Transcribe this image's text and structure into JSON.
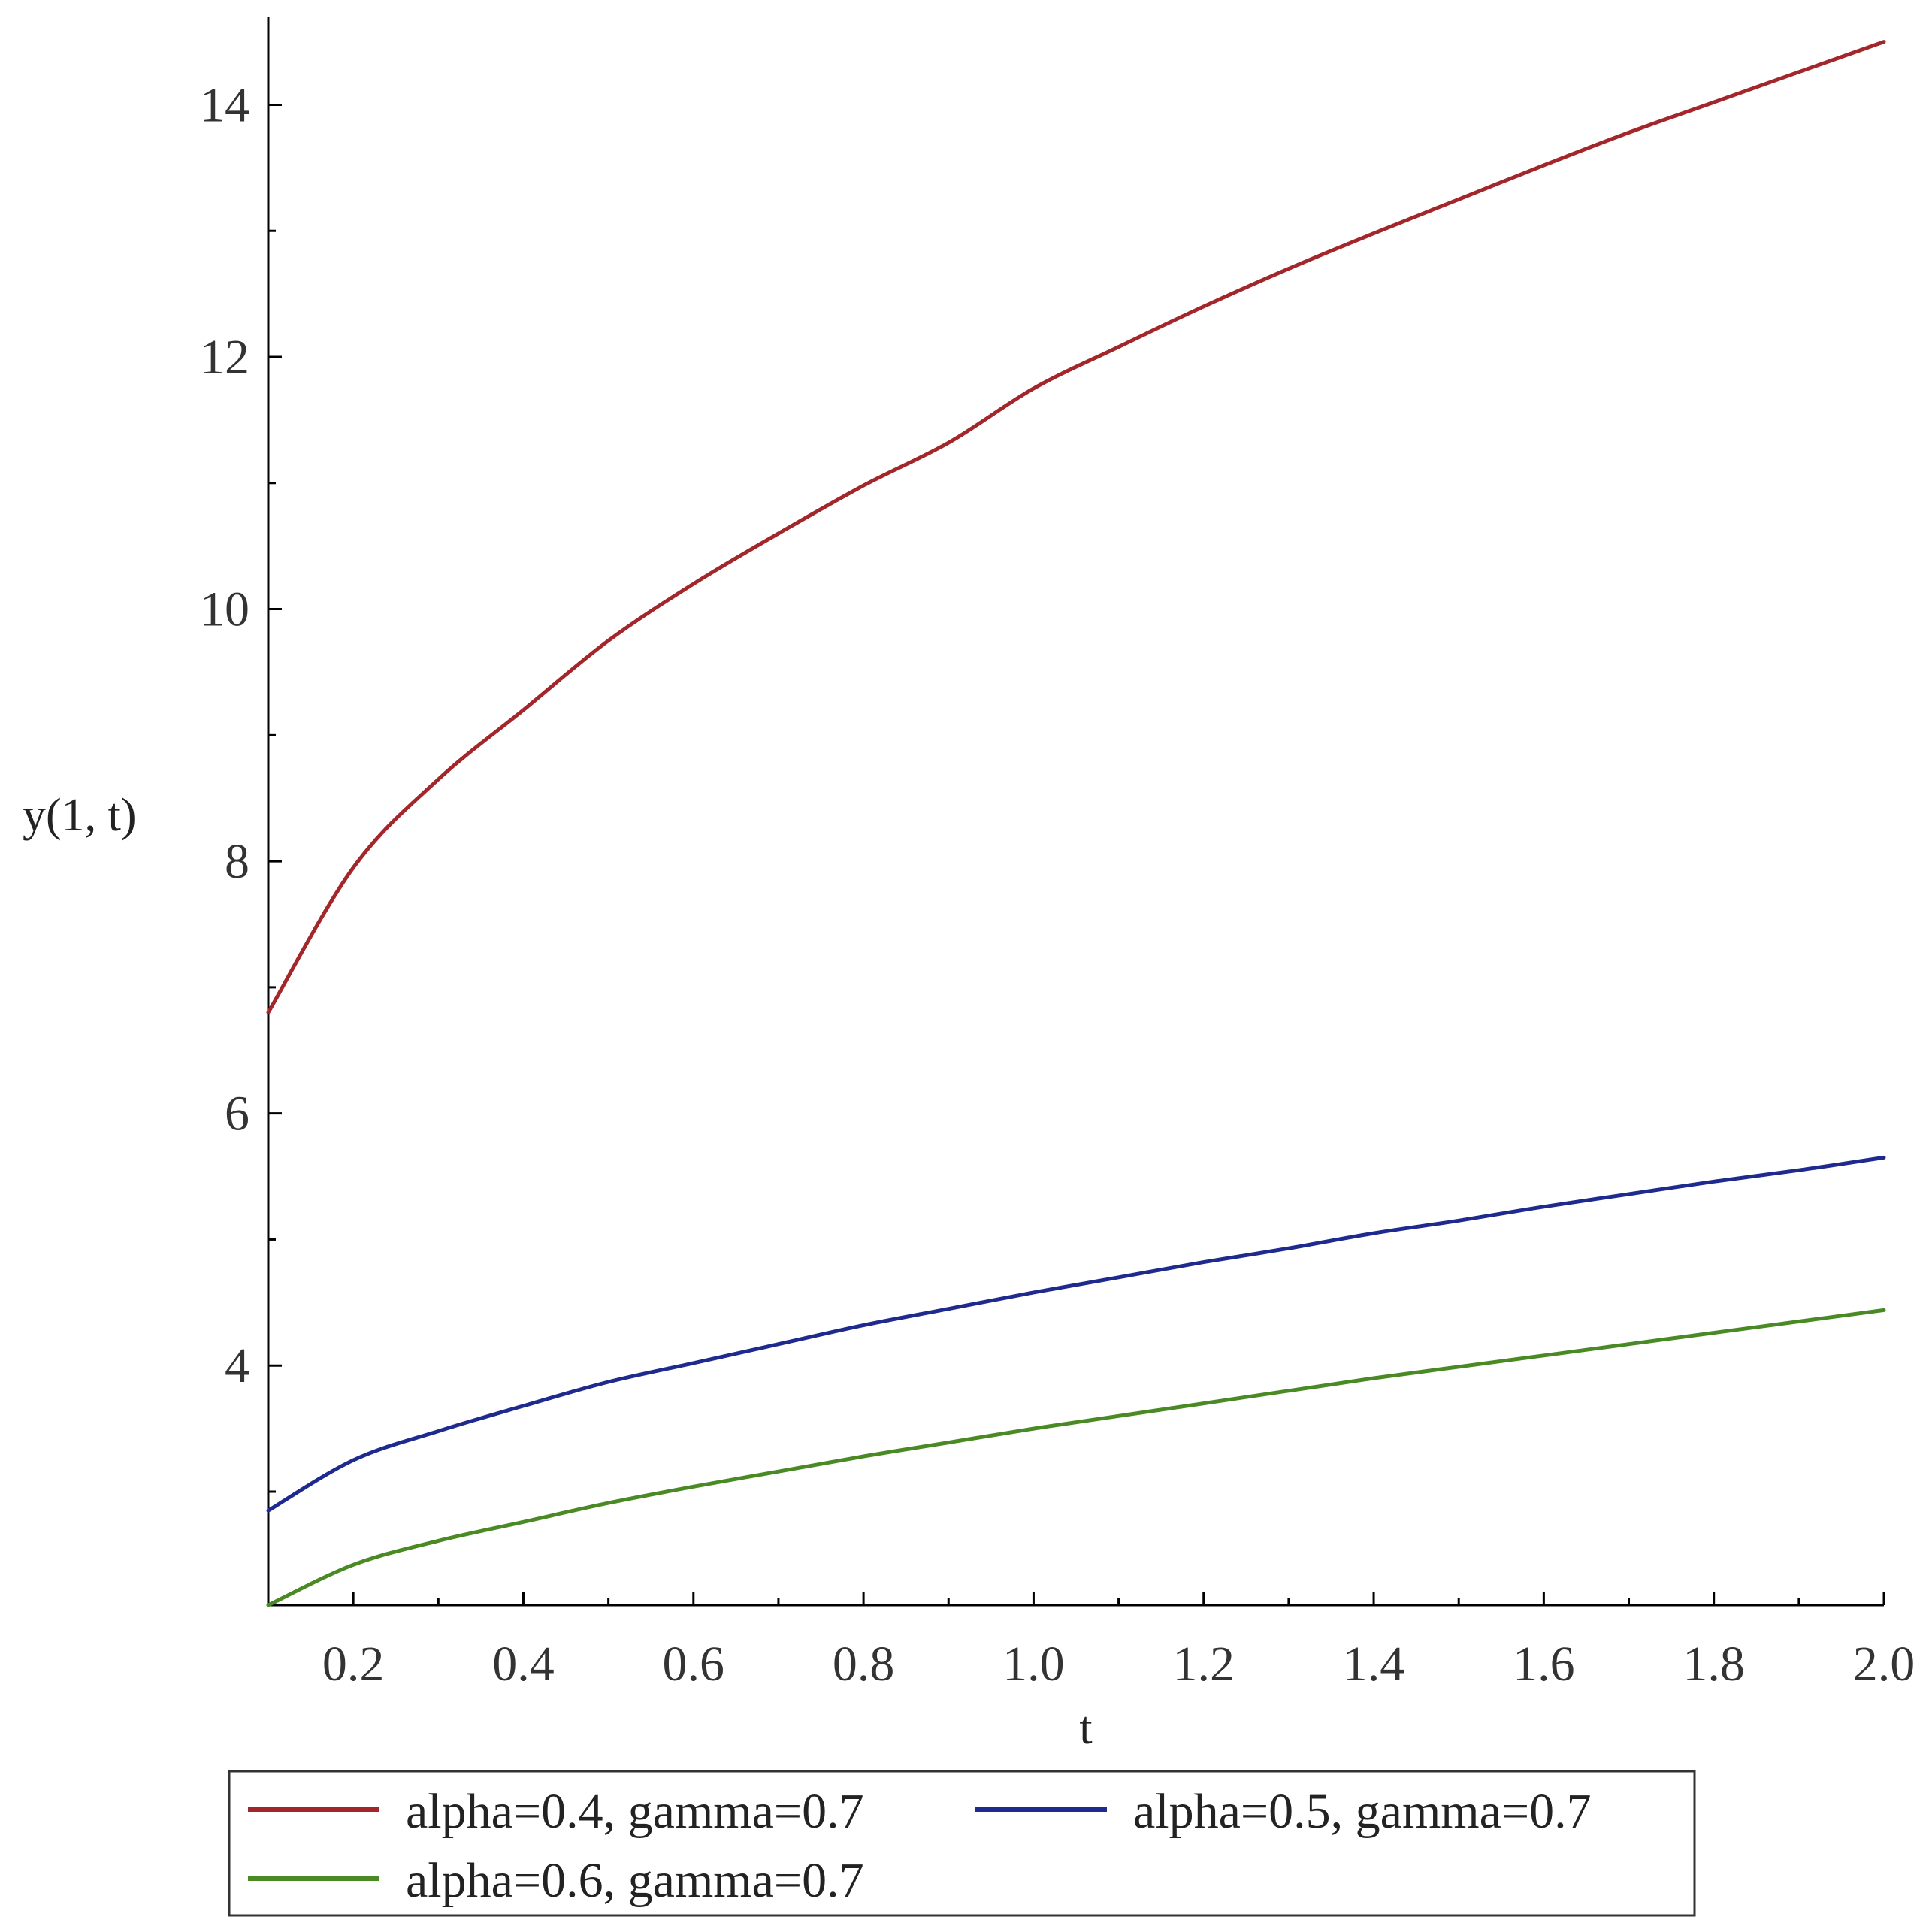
{
  "chart_data": {
    "type": "line",
    "xlabel": "t",
    "ylabel": "y(1, t)",
    "xlim": [
      0.1,
      2.0
    ],
    "ylim": [
      2.1,
      14.7
    ],
    "x_ticks": [
      0.2,
      0.4,
      0.6,
      0.8,
      1.0,
      1.2,
      1.4,
      1.6,
      1.8,
      2.0
    ],
    "x_tick_labels": [
      "0.2",
      "0.4",
      "0.6",
      "0.8",
      "1.0",
      "1.2",
      "1.4",
      "1.6",
      "1.8",
      "2.0"
    ],
    "x_minor_ticks": [
      0.3,
      0.5,
      0.7,
      0.9,
      1.1,
      1.3,
      1.5,
      1.7,
      1.9
    ],
    "y_ticks": [
      4,
      6,
      8,
      10,
      12,
      14
    ],
    "y_tick_labels": [
      "4",
      "6",
      "8",
      "10",
      "12",
      "14"
    ],
    "y_minor_ticks": [
      3,
      5,
      7,
      9,
      11,
      13
    ],
    "grid": false,
    "legend_position": "bottom",
    "x": [
      0.1,
      0.2,
      0.3,
      0.4,
      0.5,
      0.6,
      0.7,
      0.8,
      0.9,
      1.0,
      1.1,
      1.2,
      1.3,
      1.4,
      1.5,
      1.6,
      1.7,
      1.8,
      1.9,
      2.0
    ],
    "series": [
      {
        "name": "alpha=0.4, gamma=0.7",
        "color": "#a3262a",
        "values": [
          6.8,
          7.95,
          8.65,
          9.2,
          9.75,
          10.2,
          10.6,
          10.98,
          11.32,
          11.75,
          12.08,
          12.4,
          12.7,
          12.98,
          13.25,
          13.52,
          13.78,
          14.02,
          14.26,
          14.5
        ]
      },
      {
        "name": "alpha=0.5, gamma=0.7",
        "color": "#1f2a8f",
        "values": [
          2.85,
          3.25,
          3.48,
          3.68,
          3.87,
          4.02,
          4.17,
          4.32,
          4.45,
          4.58,
          4.7,
          4.82,
          4.93,
          5.05,
          5.15,
          5.26,
          5.36,
          5.46,
          5.55,
          5.65
        ]
      },
      {
        "name": "alpha=0.6, gamma=0.7",
        "color": "#4a8a24",
        "values": [
          2.1,
          2.42,
          2.61,
          2.76,
          2.91,
          3.04,
          3.16,
          3.28,
          3.39,
          3.5,
          3.6,
          3.7,
          3.8,
          3.9,
          3.99,
          4.08,
          4.17,
          4.26,
          4.35,
          4.44
        ]
      }
    ]
  }
}
